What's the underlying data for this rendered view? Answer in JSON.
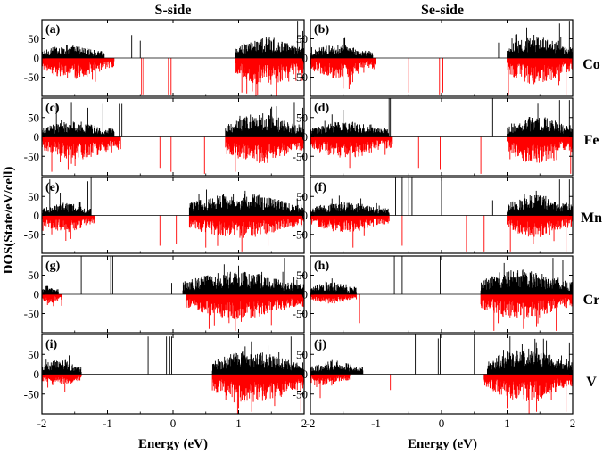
{
  "chart_data": {
    "type": "area",
    "column_titles": [
      "S-side",
      "Se-side"
    ],
    "elements": [
      "Co",
      "Fe",
      "Mn",
      "Cr",
      "V"
    ],
    "xlabel": "Energy (eV)",
    "ylabel": "DOS(State/eV/cell)",
    "xlim": [
      -2,
      2
    ],
    "ylim": [
      -100,
      100
    ],
    "x_ticks": [
      "-2",
      "-1",
      "0",
      "1",
      "2"
    ],
    "y_ticks": [
      "50",
      "0",
      "-50"
    ],
    "series_colors": {
      "spin_up": "#000000",
      "spin_down": "#ff0000"
    },
    "panels": [
      {
        "label": "(a)",
        "column": 0,
        "row": 0,
        "up": {
          "dense": [
            [
              -2.0,
              -1.05,
              35
            ],
            [
              0.95,
              2.0,
              55
            ]
          ],
          "peaks": [
            [
              -0.63,
              60
            ],
            [
              -0.5,
              45
            ],
            [
              1.9,
              95
            ],
            [
              1.98,
              70
            ]
          ]
        },
        "down": {
          "dense": [
            [
              -2.0,
              -0.9,
              55
            ],
            [
              0.95,
              2.0,
              75
            ]
          ],
          "peaks": [
            [
              -0.48,
              95
            ],
            [
              -0.45,
              95
            ],
            [
              -0.07,
              95
            ],
            [
              -0.03,
              95
            ],
            [
              1.05,
              90
            ]
          ]
        }
      },
      {
        "label": "(b)",
        "column": 1,
        "row": 0,
        "up": {
          "dense": [
            [
              -2.0,
              -1.05,
              35
            ],
            [
              1.0,
              2.0,
              55
            ]
          ],
          "peaks": [
            [
              0.87,
              40
            ],
            [
              1.8,
              90
            ],
            [
              1.95,
              95
            ]
          ]
        },
        "down": {
          "dense": [
            [
              -2.0,
              -1.0,
              55
            ],
            [
              1.0,
              2.0,
              70
            ]
          ],
          "peaks": [
            [
              -1.5,
              80
            ],
            [
              -0.5,
              90
            ],
            [
              -0.03,
              95
            ],
            [
              0.02,
              90
            ],
            [
              1.02,
              95
            ],
            [
              1.9,
              95
            ]
          ]
        }
      },
      {
        "label": "(c)",
        "column": 0,
        "row": 1,
        "up": {
          "dense": [
            [
              -2.0,
              -0.9,
              40
            ],
            [
              0.8,
              2.0,
              60
            ]
          ],
          "peaks": [
            [
              -1.78,
              85
            ],
            [
              -1.55,
              90
            ],
            [
              -1.3,
              75
            ],
            [
              -1.07,
              85
            ],
            [
              -0.82,
              85
            ],
            [
              -0.78,
              85
            ],
            [
              1.85,
              90
            ],
            [
              1.98,
              75
            ]
          ]
        },
        "down": {
          "dense": [
            [
              -2.0,
              -0.8,
              60
            ],
            [
              0.8,
              2.0,
              70
            ]
          ],
          "peaks": [
            [
              -1.85,
              90
            ],
            [
              -1.6,
              85
            ],
            [
              -0.2,
              80
            ],
            [
              -0.03,
              90
            ],
            [
              0.48,
              95
            ],
            [
              0.95,
              90
            ]
          ]
        }
      },
      {
        "label": "(d)",
        "column": 1,
        "row": 1,
        "up": {
          "dense": [
            [
              -2.0,
              -0.8,
              40
            ],
            [
              1.0,
              2.0,
              55
            ]
          ],
          "peaks": [
            [
              -1.5,
              70
            ],
            [
              -0.8,
              100
            ],
            [
              -0.78,
              100
            ],
            [
              0.78,
              100
            ],
            [
              1.8,
              95
            ],
            [
              1.95,
              95
            ]
          ]
        },
        "down": {
          "dense": [
            [
              -2.0,
              -0.75,
              55
            ],
            [
              1.0,
              2.0,
              70
            ]
          ],
          "peaks": [
            [
              -1.4,
              80
            ],
            [
              -0.35,
              80
            ],
            [
              -0.02,
              85
            ],
            [
              0.6,
              95
            ],
            [
              1.97,
              95
            ]
          ]
        }
      },
      {
        "label": "(e)",
        "column": 0,
        "row": 2,
        "up": {
          "dense": [
            [
              -2.0,
              -1.25,
              35
            ],
            [
              0.25,
              2.0,
              60
            ]
          ],
          "peaks": [
            [
              -1.88,
              95
            ],
            [
              -1.72,
              60
            ],
            [
              -1.3,
              90
            ],
            [
              -1.25,
              100
            ],
            [
              1.1,
              65
            ]
          ]
        },
        "down": {
          "dense": [
            [
              -2.0,
              -1.2,
              45
            ],
            [
              0.25,
              2.0,
              60
            ]
          ],
          "peaks": [
            [
              -1.85,
              50
            ],
            [
              -0.2,
              80
            ],
            [
              0.05,
              75
            ],
            [
              0.5,
              85
            ],
            [
              1.05,
              95
            ],
            [
              1.45,
              80
            ]
          ]
        }
      },
      {
        "label": "(f)",
        "column": 1,
        "row": 2,
        "up": {
          "dense": [
            [
              -2.0,
              -0.8,
              35
            ],
            [
              1.0,
              2.0,
              55
            ]
          ],
          "peaks": [
            [
              -0.7,
              100
            ],
            [
              -0.6,
              100
            ],
            [
              -0.5,
              100
            ],
            [
              -0.45,
              100
            ],
            [
              0.0,
              100
            ],
            [
              0.78,
              40
            ],
            [
              1.8,
              95
            ],
            [
              1.95,
              95
            ]
          ]
        },
        "down": {
          "dense": [
            [
              -2.0,
              -0.8,
              45
            ],
            [
              1.0,
              2.0,
              60
            ]
          ],
          "peaks": [
            [
              -1.35,
              85
            ],
            [
              -0.6,
              80
            ],
            [
              0.38,
              95
            ],
            [
              0.65,
              95
            ],
            [
              1.05,
              95
            ],
            [
              1.9,
              95
            ]
          ]
        }
      },
      {
        "label": "(g)",
        "column": 0,
        "row": 3,
        "up": {
          "dense": [
            [
              -2.0,
              -1.75,
              25
            ],
            [
              0.15,
              2.0,
              60
            ]
          ],
          "peaks": [
            [
              -1.4,
              100
            ],
            [
              -0.95,
              100
            ],
            [
              -0.92,
              100
            ],
            [
              -0.02,
              30
            ],
            [
              1.0,
              75
            ],
            [
              1.7,
              95
            ]
          ]
        },
        "down": {
          "dense": [
            [
              -2.0,
              -1.7,
              25
            ],
            [
              0.2,
              2.0,
              65
            ]
          ],
          "peaks": [
            [
              -1.7,
              30
            ],
            [
              0.55,
              90
            ],
            [
              0.95,
              95
            ],
            [
              1.5,
              80
            ]
          ]
        }
      },
      {
        "label": "(h)",
        "column": 1,
        "row": 3,
        "up": {
          "dense": [
            [
              -2.0,
              -1.3,
              35
            ],
            [
              0.6,
              2.0,
              65
            ]
          ],
          "peaks": [
            [
              -1.0,
              100
            ],
            [
              -0.72,
              100
            ],
            [
              -0.6,
              100
            ],
            [
              -0.02,
              100
            ],
            [
              1.7,
              95
            ],
            [
              1.85,
              90
            ]
          ]
        },
        "down": {
          "dense": [
            [
              -2.0,
              -1.3,
              25
            ],
            [
              0.6,
              2.0,
              65
            ]
          ],
          "peaks": [
            [
              -1.25,
              75
            ],
            [
              0.8,
              95
            ],
            [
              1.25,
              90
            ],
            [
              1.75,
              95
            ]
          ]
        }
      },
      {
        "label": "(i)",
        "column": 0,
        "row": 4,
        "up": {
          "dense": [
            [
              -2.0,
              -1.4,
              40
            ],
            [
              0.6,
              2.0,
              60
            ]
          ],
          "peaks": [
            [
              -0.38,
              95
            ],
            [
              -0.1,
              95
            ],
            [
              -0.05,
              95
            ],
            [
              -0.02,
              95
            ],
            [
              1.1,
              70
            ],
            [
              1.8,
              95
            ]
          ]
        },
        "down": {
          "dense": [
            [
              -2.0,
              -1.4,
              30
            ],
            [
              0.6,
              2.0,
              75
            ]
          ],
          "peaks": [
            [
              -1.65,
              45
            ],
            [
              1.0,
              85
            ],
            [
              1.2,
              95
            ],
            [
              1.55,
              80
            ],
            [
              1.95,
              95
            ]
          ]
        }
      },
      {
        "label": "(j)",
        "column": 1,
        "row": 4,
        "up": {
          "dense": [
            [
              -2.0,
              -1.2,
              35
            ],
            [
              0.7,
              2.0,
              65
            ]
          ],
          "peaks": [
            [
              -1.0,
              100
            ],
            [
              -0.4,
              100
            ],
            [
              -0.05,
              90
            ],
            [
              -0.02,
              100
            ],
            [
              0.5,
              100
            ],
            [
              1.6,
              85
            ],
            [
              1.95,
              80
            ]
          ]
        },
        "down": {
          "dense": [
            [
              -2.0,
              -1.4,
              30
            ],
            [
              0.65,
              2.0,
              70
            ]
          ],
          "peaks": [
            [
              -1.85,
              60
            ],
            [
              -0.78,
              40
            ],
            [
              0.7,
              20
            ],
            [
              1.0,
              85
            ],
            [
              1.45,
              95
            ],
            [
              1.9,
              95
            ]
          ]
        }
      }
    ]
  }
}
